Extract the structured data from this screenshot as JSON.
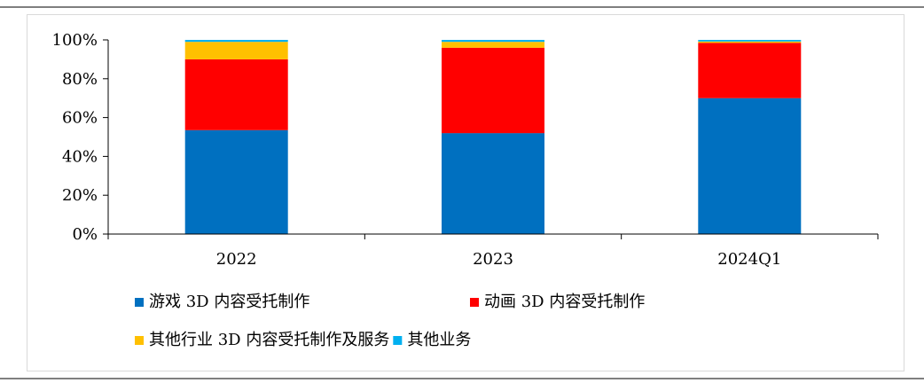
{
  "chart_data": {
    "type": "bar",
    "stacked": true,
    "categories": [
      "2022",
      "2023",
      "2024Q1"
    ],
    "series": [
      {
        "name": "游戏 3D 内容受托制作",
        "color": "#0070C0",
        "values": [
          53.5,
          52.0,
          70.0
        ]
      },
      {
        "name": "动画 3D 内容受托制作",
        "color": "#FF0000",
        "values": [
          36.5,
          44.0,
          28.5
        ]
      },
      {
        "name": "其他行业 3D 内容受托制作及服务",
        "color": "#FFC000",
        "values": [
          9.0,
          3.0,
          0.7
        ]
      },
      {
        "name": "其他业务",
        "color": "#00B0F0",
        "values": [
          1.0,
          1.0,
          0.8
        ]
      }
    ],
    "ylim": [
      0,
      100
    ],
    "yticks": [
      "0%",
      "20%",
      "40%",
      "60%",
      "80%",
      "100%"
    ],
    "ytick_values": [
      0,
      20,
      40,
      60,
      80,
      100
    ],
    "grid": false,
    "legend_position": "bottom",
    "title": "",
    "xlabel": "",
    "ylabel": ""
  }
}
